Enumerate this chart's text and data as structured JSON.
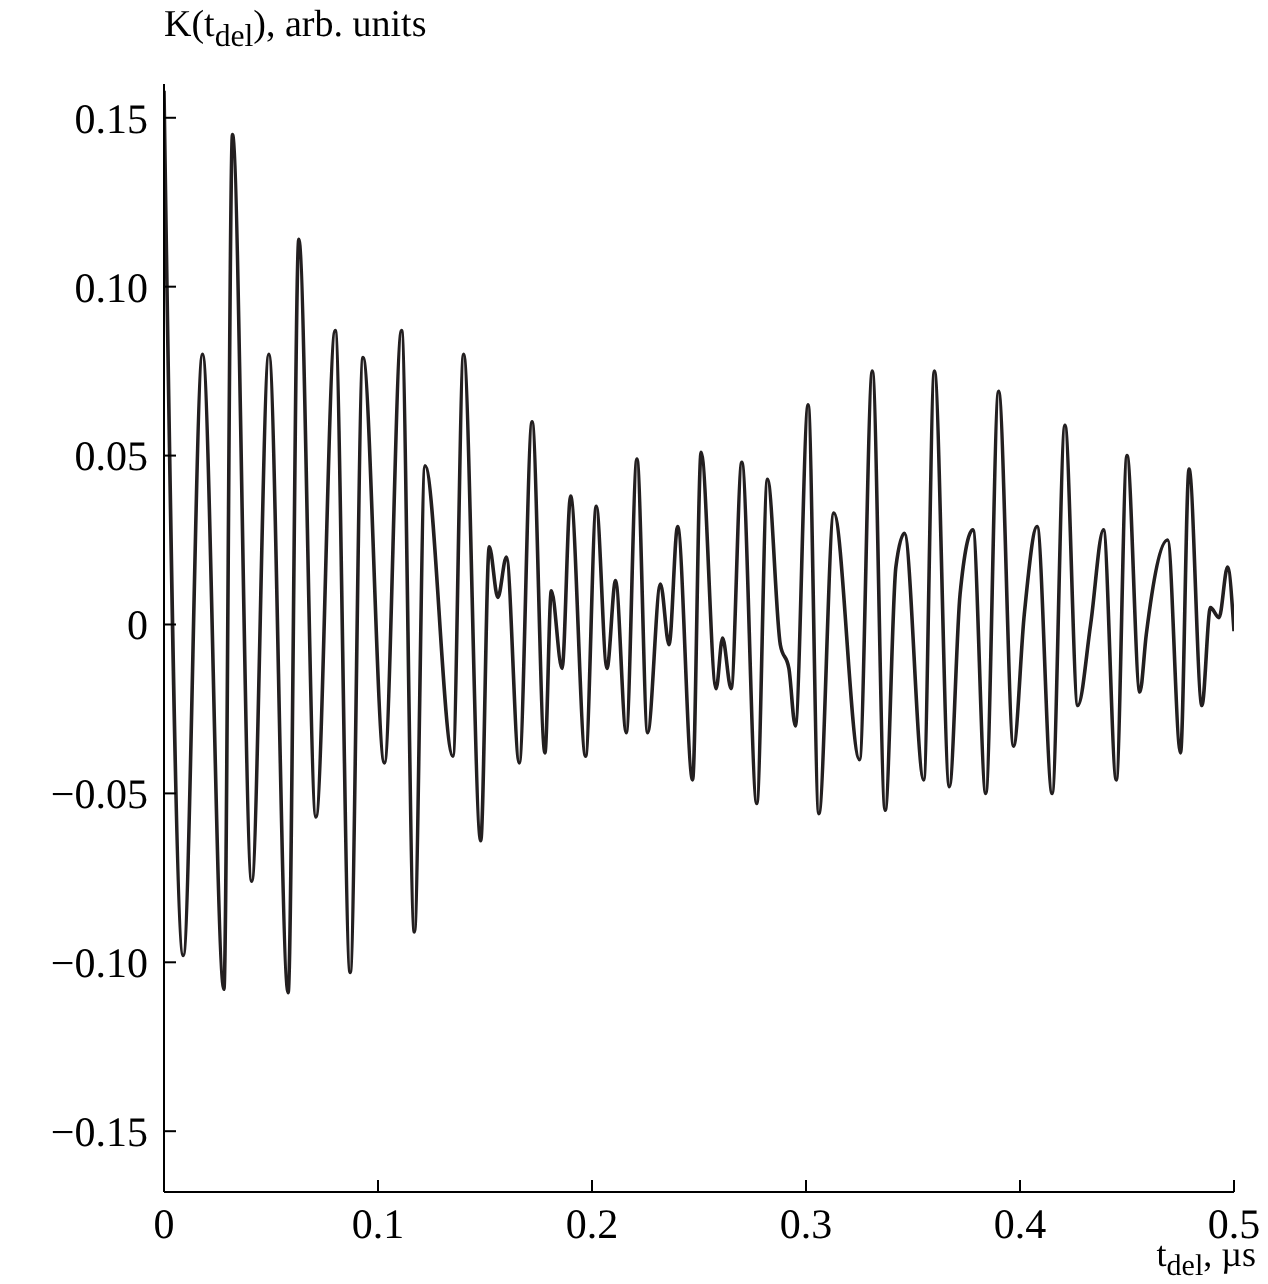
{
  "chart_data": {
    "type": "line",
    "xlabel": "t$_{del}$, µs",
    "ylabel": "K(t$_{del}$), arb. units",
    "x": [
      0,
      0.009,
      0.018,
      0.028,
      0.032,
      0.041,
      0.049,
      0.058,
      0.063,
      0.071,
      0.08,
      0.087,
      0.093,
      0.103,
      0.111,
      0.117,
      0.122,
      0.135,
      0.14,
      0.148,
      0.152,
      0.156,
      0.16,
      0.166,
      0.172,
      0.178,
      0.181,
      0.186,
      0.19,
      0.197,
      0.202,
      0.207,
      0.211,
      0.216,
      0.221,
      0.226,
      0.232,
      0.236,
      0.24,
      0.247,
      0.251,
      0.258,
      0.261,
      0.265,
      0.27,
      0.277,
      0.282,
      0.288,
      0.292,
      0.295,
      0.301,
      0.306,
      0.313,
      0.325,
      0.331,
      0.337,
      0.342,
      0.346,
      0.355,
      0.36,
      0.367,
      0.372,
      0.378,
      0.384,
      0.39,
      0.397,
      0.402,
      0.408,
      0.415,
      0.421,
      0.427,
      0.433,
      0.439,
      0.445,
      0.45,
      0.456,
      0.459,
      0.469,
      0.475,
      0.479,
      0.485,
      0.489,
      0.493,
      0.497,
      0.5
    ],
    "series": [
      {
        "color": "#231f20",
        "values": [
          0.158,
          -0.098,
          0.08,
          -0.108,
          0.145,
          -0.076,
          0.08,
          -0.109,
          0.114,
          -0.057,
          0.087,
          -0.103,
          0.079,
          -0.041,
          0.087,
          -0.091,
          0.047,
          -0.039,
          0.08,
          -0.064,
          0.023,
          0.008,
          0.02,
          -0.041,
          0.06,
          -0.038,
          0.01,
          -0.013,
          0.038,
          -0.039,
          0.035,
          -0.013,
          0.013,
          -0.032,
          0.049,
          -0.032,
          0.012,
          -0.006,
          0.029,
          -0.046,
          0.051,
          -0.019,
          -0.004,
          -0.019,
          0.048,
          -0.053,
          0.043,
          -0.006,
          -0.013,
          -0.03,
          0.065,
          -0.056,
          0.033,
          -0.04,
          0.075,
          -0.055,
          0.017,
          0.027,
          -0.046,
          0.075,
          -0.048,
          0.009,
          0.028,
          -0.05,
          0.069,
          -0.036,
          0.003,
          0.029,
          -0.05,
          0.059,
          -0.024,
          0.0,
          0.028,
          -0.046,
          0.05,
          -0.02,
          -0.003,
          0.025,
          -0.038,
          0.046,
          -0.024,
          0.005,
          0.002,
          0.017,
          -0.002
        ]
      }
    ],
    "xlim": [
      0,
      0.5
    ],
    "xticks": [
      0,
      0.1,
      0.2,
      0.3,
      0.4,
      0.5
    ],
    "ylim": [
      -0.168,
      0.16
    ],
    "yticks": [
      {
        "value": -0.15,
        "label": "−0.15"
      },
      {
        "value": -0.1,
        "label": "−0.10"
      },
      {
        "value": -0.05,
        "label": "−0.05"
      },
      {
        "value": 0,
        "label": "0"
      },
      {
        "value": 0.05,
        "label": "0.05"
      },
      {
        "value": 0.1,
        "label": "0.10"
      },
      {
        "value": 0.15,
        "label": "0.15"
      }
    ],
    "grid": false,
    "legend": false,
    "marker": "none",
    "line_style": "solid"
  }
}
